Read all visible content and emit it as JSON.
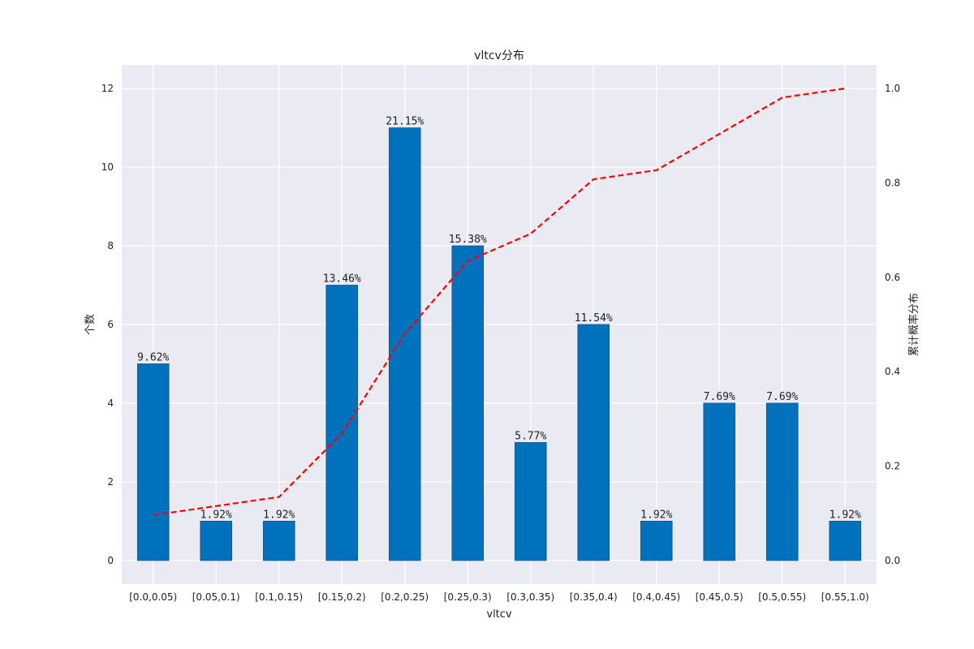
{
  "chart_data": {
    "type": "bar",
    "title": "vltcv分布",
    "xlabel": "vltcv",
    "ylabel": "个数",
    "y2label": "累计概率分布",
    "categories": [
      "[0.0,0.05)",
      "[0.05,0.1)",
      "[0.1,0.15)",
      "[0.15,0.2)",
      "[0.2,0.25)",
      "[0.25,0.3)",
      "[0.3,0.35)",
      "[0.35,0.4)",
      "[0.4,0.45)",
      "[0.45,0.5)",
      "[0.5,0.55)",
      "[0.55,1.0)"
    ],
    "series": [
      {
        "type": "bar",
        "values": [
          5,
          1,
          1,
          7,
          11,
          8,
          3,
          6,
          1,
          4,
          4,
          1
        ],
        "labels": [
          "9.62%",
          "1.92%",
          "1.92%",
          "13.46%",
          "21.15%",
          "15.38%",
          "5.77%",
          "11.54%",
          "1.92%",
          "7.69%",
          "7.69%",
          "1.92%"
        ],
        "color": "#0072bd"
      },
      {
        "type": "line",
        "axis": "right",
        "style": "dashed",
        "values": [
          0.0962,
          0.1154,
          0.1346,
          0.2692,
          0.4808,
          0.6346,
          0.6923,
          0.8077,
          0.8269,
          0.9038,
          0.9808,
          1.0
        ],
        "color": "#ff0000"
      }
    ],
    "ylim": [
      -0.6,
      12.6
    ],
    "yticks": [
      0,
      2,
      4,
      6,
      8,
      10,
      12
    ],
    "y2lim": [
      -0.05,
      1.05
    ],
    "y2ticks": [
      "0.0",
      "0.2",
      "0.4",
      "0.6",
      "0.8",
      "1.0"
    ],
    "grid": true,
    "background": "#eaeaf2",
    "grid_color": "#ffffff"
  }
}
